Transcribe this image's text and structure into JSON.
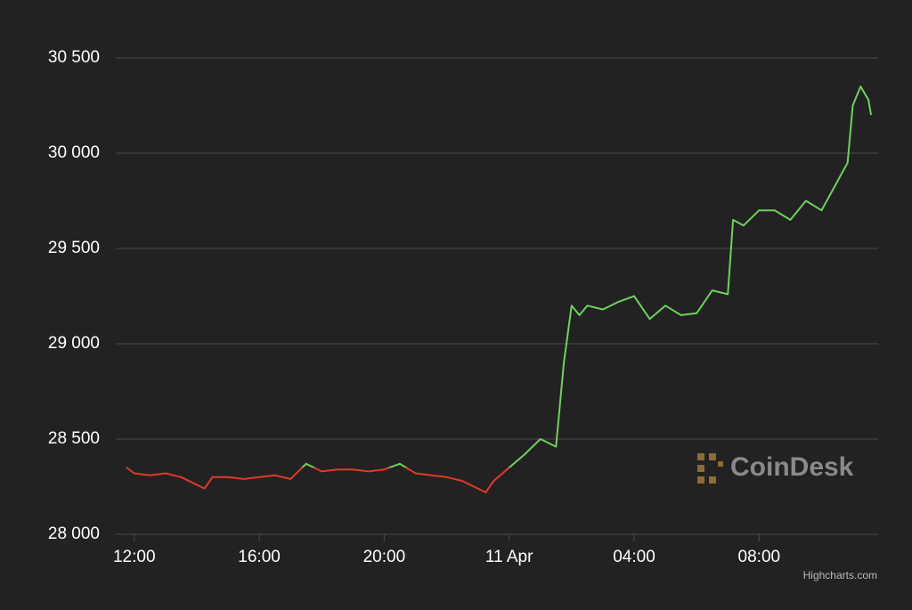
{
  "chart_data": {
    "type": "line",
    "x": [
      "11:45",
      "12:00",
      "12:30",
      "13:00",
      "13:30",
      "14:00",
      "14:15",
      "14:30",
      "15:00",
      "15:30",
      "16:00",
      "16:30",
      "17:00",
      "17:30",
      "18:00",
      "18:30",
      "19:00",
      "19:30",
      "20:00",
      "20:30",
      "21:00",
      "21:30",
      "22:00",
      "22:30",
      "23:00",
      "23:15",
      "23:30",
      "00:00",
      "00:30",
      "01:00",
      "01:30",
      "01:45",
      "02:00",
      "02:15",
      "02:30",
      "03:00",
      "03:30",
      "04:00",
      "04:30",
      "05:00",
      "05:30",
      "06:00",
      "06:30",
      "07:00",
      "07:10",
      "07:30",
      "08:00",
      "08:30",
      "09:00",
      "09:30",
      "10:00",
      "10:30",
      "10:50",
      "11:00",
      "11:15",
      "11:30",
      "11:35"
    ],
    "values": [
      28350,
      28320,
      28310,
      28320,
      28300,
      28260,
      28240,
      28300,
      28300,
      28290,
      28300,
      28310,
      28290,
      28370,
      28330,
      28340,
      28340,
      28330,
      28340,
      28370,
      28320,
      28310,
      28300,
      28280,
      28240,
      28220,
      28280,
      28350,
      28420,
      28500,
      28460,
      28900,
      29200,
      29150,
      29200,
      29180,
      29220,
      29250,
      29130,
      29200,
      29150,
      29160,
      29280,
      29260,
      29650,
      29620,
      29700,
      29700,
      29650,
      29750,
      29700,
      29850,
      29950,
      30250,
      30350,
      30280,
      30200
    ],
    "color_up": "#6fd05e",
    "color_down": "#e0392a",
    "xlim": [
      "11:45",
      "11:35"
    ],
    "xticks": [
      "12:00",
      "16:00",
      "20:00",
      {
        "value": "00:00",
        "label": "11 Apr"
      },
      "04:00",
      "08:00"
    ],
    "ylim": [
      28000,
      30500
    ],
    "yticks": [
      {
        "value": 28000,
        "label": "28 000"
      },
      {
        "value": 28500,
        "label": "28 500"
      },
      {
        "value": 29000,
        "label": "29 000"
      },
      {
        "value": 29500,
        "label": "29 500"
      },
      {
        "value": 30000,
        "label": "30 000"
      },
      {
        "value": 30500,
        "label": "30 500"
      }
    ],
    "grid": true,
    "watermark": "CoinDesk",
    "credits": "Highcharts.com"
  }
}
